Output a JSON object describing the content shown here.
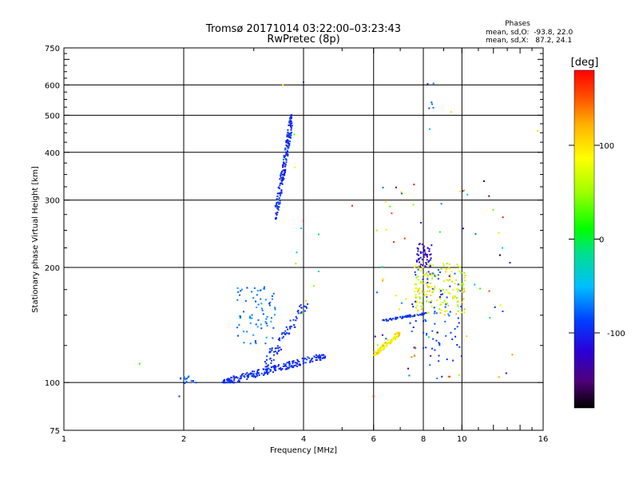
{
  "chart_data": {
    "type": "scatter",
    "title": "Tromsø 20171014 03:22:00–03:23:43",
    "subtitle": "RwPretec (8p)",
    "xlabel": "Frequency [MHz]",
    "ylabel": "Stationary phase Virtual Height [km]",
    "xscale": "log",
    "yscale": "log",
    "xlim": [
      1,
      16
    ],
    "ylim": [
      75,
      750
    ],
    "x_ticks": [
      1,
      2,
      4,
      6,
      8,
      10,
      16
    ],
    "x_tick_labels": [
      "1",
      "2",
      "4",
      "6",
      "8",
      "10",
      "16"
    ],
    "y_ticks": [
      75,
      100,
      200,
      300,
      400,
      500,
      600,
      750
    ],
    "y_tick_labels": [
      "75",
      "100",
      "200",
      "300",
      "400",
      "500",
      "600",
      "750"
    ],
    "grid_x": [
      2,
      4,
      6,
      8,
      10
    ],
    "grid_y": [
      100,
      200,
      300,
      400,
      500,
      600
    ],
    "grid": true,
    "annotation": {
      "header": "Phases",
      "line1": "mean, sd,O:  -93.8, 22.0",
      "line2": "mean, sd,X:   87.2, 24.1"
    },
    "colorbar": {
      "label": "[deg]",
      "min": -180,
      "max": 180,
      "ticks": [
        100,
        0,
        -100
      ],
      "tick_labels": [
        "100",
        "0",
        "-100"
      ],
      "colormap": "rainbow (black-purple-blue-cyan-green-yellow-orange-red)"
    },
    "clusters": [
      {
        "x": [
          3.4,
          3.75
        ],
        "y": [
          268,
          500
        ],
        "n": 190,
        "phase": [
          -118,
          -80
        ],
        "shape": "ridge"
      },
      {
        "x": [
          2.5,
          4.6
        ],
        "y": [
          100,
          118
        ],
        "n": 230,
        "phase": [
          -110,
          -85
        ],
        "shape": "ridge"
      },
      {
        "x": [
          3.2,
          4.1
        ],
        "y": [
          110,
          163
        ],
        "n": 75,
        "phase": [
          -110,
          -85
        ],
        "shape": "ridge"
      },
      {
        "x": [
          2.7,
          3.4
        ],
        "y": [
          122,
          178
        ],
        "n": 75,
        "phase": [
          -95,
          -55
        ],
        "shape": "box"
      },
      {
        "x": [
          1.95,
          2.15
        ],
        "y": [
          99,
          104
        ],
        "n": 14,
        "phase": [
          -95,
          -65
        ],
        "shape": "box"
      },
      {
        "x": [
          6.0,
          7.0
        ],
        "y": [
          118,
          135
        ],
        "n": 95,
        "phase": [
          60,
          120
        ],
        "shape": "ridge"
      },
      {
        "x": [
          6.3,
          8.2
        ],
        "y": [
          145,
          152
        ],
        "n": 60,
        "phase": [
          -110,
          -85
        ],
        "shape": "ridge"
      },
      {
        "x": [
          7.7,
          8.4
        ],
        "y": [
          200,
          232
        ],
        "n": 55,
        "phase": [
          -140,
          -110
        ],
        "shape": "box"
      },
      {
        "x": [
          7.6,
          10.2
        ],
        "y": [
          150,
          205
        ],
        "n": 170,
        "phase": [
          40,
          120
        ],
        "shape": "box"
      },
      {
        "x": [
          7.4,
          10.0
        ],
        "y": [
          110,
          200
        ],
        "n": 80,
        "phase": [
          -110,
          -75
        ],
        "shape": "box"
      },
      {
        "x": [
          6.0,
          13.5
        ],
        "y": [
          100,
          340
        ],
        "n": 70,
        "phase": [
          -180,
          180
        ],
        "shape": "box"
      },
      {
        "x": [
          8.2,
          8.5
        ],
        "y": [
          520,
          610
        ],
        "n": 6,
        "phase": [
          -100,
          -70
        ],
        "shape": "box"
      },
      {
        "x": [
          3.7,
          4.4
        ],
        "y": [
          150,
          450
        ],
        "n": 10,
        "phase": [
          -110,
          150
        ],
        "shape": "box"
      }
    ],
    "points": [
      {
        "x": 1.55,
        "y": 112,
        "phase": 20
      },
      {
        "x": 1.95,
        "y": 92,
        "phase": -100
      },
      {
        "x": 3.55,
        "y": 600,
        "phase": 100
      },
      {
        "x": 4.0,
        "y": 610,
        "phase": -100
      },
      {
        "x": 5.3,
        "y": 290,
        "phase": 170
      },
      {
        "x": 4.0,
        "y": 265,
        "phase": 160
      },
      {
        "x": 6.0,
        "y": 92,
        "phase": 170
      },
      {
        "x": 15.5,
        "y": 455,
        "phase": 60
      },
      {
        "x": 9.4,
        "y": 510,
        "phase": 100
      },
      {
        "x": 8.3,
        "y": 460,
        "phase": -40
      }
    ]
  }
}
